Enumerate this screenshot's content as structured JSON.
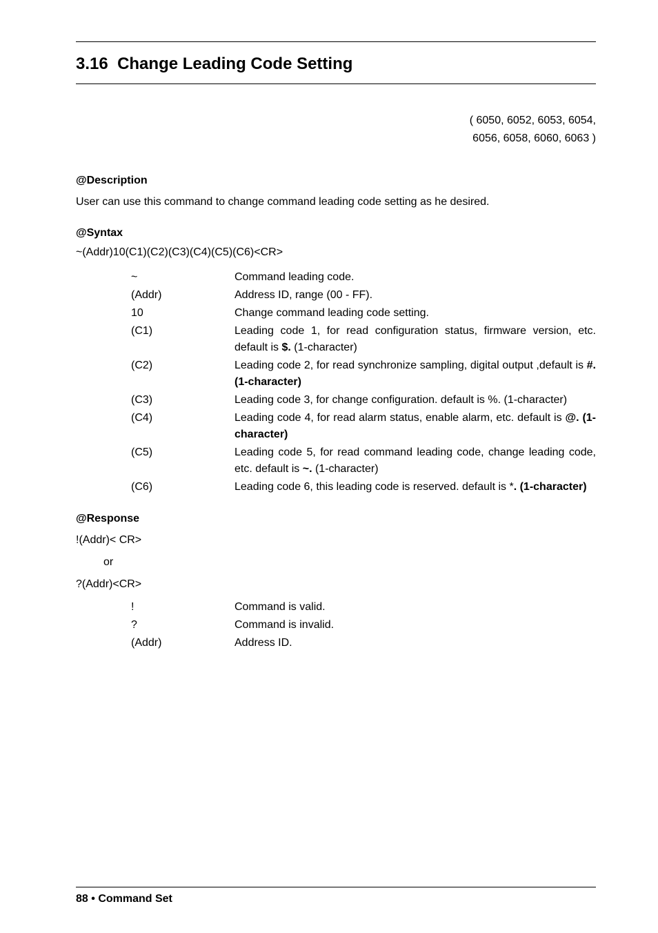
{
  "section": {
    "number": "3.16",
    "title": "Change Leading Code Setting"
  },
  "devices": {
    "line1": "( 6050, 6052, 6053, 6054,",
    "line2": "6056, 6058, 6060, 6063 )"
  },
  "description": {
    "heading": "@Description",
    "text": "User can use this command to change command leading code setting as he desired."
  },
  "syntax": {
    "heading": "@Syntax",
    "line": "~(Addr)10(C1)(C2)(C3)(C4)(C5)(C6)<CR>",
    "params": [
      {
        "key": "~",
        "desc": "Command leading code."
      },
      {
        "key": "(Addr)",
        "desc": "Address ID, range (00 - FF)."
      },
      {
        "key": "10",
        "desc": "Change command leading code setting."
      },
      {
        "key": "(C1)",
        "desc": "Leading code 1, for read configuration status, firmware version, etc. default is <b>$.</b> (1-character)"
      },
      {
        "key": "(C2)",
        "desc": "Leading code 2, for read synchronize sampling, digital output ,default is <b>#. (1-character)</b>"
      },
      {
        "key": "(C3)",
        "desc": "Leading code 3, for change configuration. default is %. (1-character)"
      },
      {
        "key": "(C4)",
        "desc": "Leading code 4, for read alarm status, enable alarm, etc. default is <b>@. (1-character)</b>"
      },
      {
        "key": "(C5)",
        "desc": "Leading code 5, for read command leading code, change leading code, etc. default is <b>~.</b> (1-character)"
      },
      {
        "key": "(C6)",
        "desc": "Leading code 6, this leading code is reserved. default is *<b>. (1-character)</b>"
      }
    ]
  },
  "response": {
    "heading": "@Response",
    "line1": "!(Addr)< CR>",
    "or": "or",
    "line2": "?(Addr)<CR>",
    "params": [
      {
        "key": "!",
        "desc": "Command is valid."
      },
      {
        "key": "?",
        "desc": "Command is invalid."
      },
      {
        "key": "(Addr)",
        "desc": "Address ID."
      }
    ]
  },
  "footer": {
    "page": "88",
    "bullet": "•",
    "title": "Command Set"
  }
}
